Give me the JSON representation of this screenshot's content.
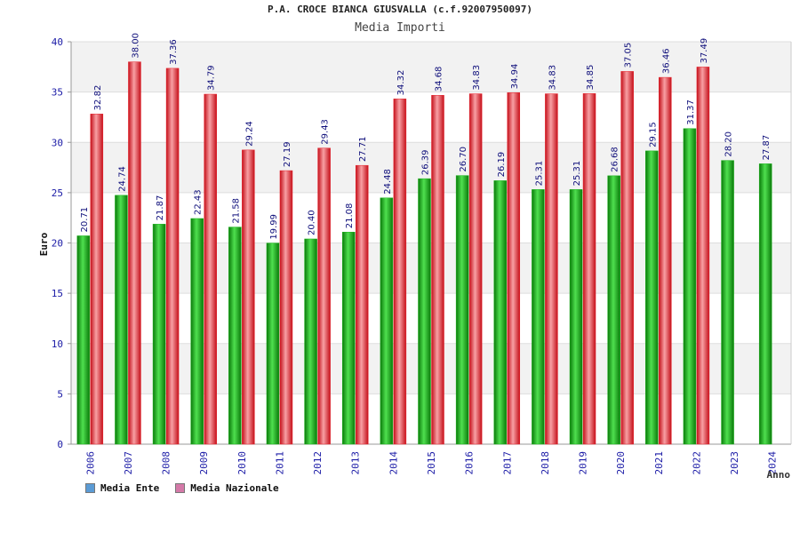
{
  "title": "P.A. CROCE BIANCA GIUSVALLA (c.f.92007950097)",
  "subtitle": "Media Importi",
  "chart_data": {
    "type": "bar",
    "ylabel": "Euro",
    "xlabel": "Anno",
    "ylim": [
      0,
      40
    ],
    "yticks": [
      0,
      5,
      10,
      15,
      20,
      25,
      30,
      35,
      40
    ],
    "grid": true,
    "legend_position": "bottom-left",
    "categories": [
      "2006",
      "2007",
      "2008",
      "2009",
      "2010",
      "2011",
      "2012",
      "2013",
      "2014",
      "2015",
      "2016",
      "2017",
      "2018",
      "2019",
      "2020",
      "2021",
      "2022",
      "2023",
      "2024"
    ],
    "series": [
      {
        "name": "Media Ente",
        "color": "#19b319",
        "legend_color": "#5b9bd5",
        "values": [
          20.71,
          24.74,
          21.87,
          22.43,
          21.58,
          19.99,
          20.4,
          21.08,
          24.48,
          26.39,
          26.7,
          26.19,
          25.31,
          25.31,
          26.68,
          29.15,
          31.37,
          28.2,
          27.87
        ],
        "labels": [
          "20.71",
          "24.74",
          "21.87",
          "22.43",
          "21.58",
          "19.99",
          "20.40",
          "21.08",
          "24.48",
          "26.39",
          "26.70",
          "26.19",
          "25.31",
          "25.31",
          "26.68",
          "29.15",
          "31.37",
          "28.20",
          "27.87"
        ]
      },
      {
        "name": "Media Nazionale",
        "color": "#e8202a",
        "legend_color": "#d479a8",
        "values": [
          32.82,
          38.0,
          37.36,
          34.79,
          29.24,
          27.19,
          29.43,
          27.71,
          34.32,
          34.68,
          34.83,
          34.94,
          34.83,
          34.85,
          37.05,
          36.46,
          37.49,
          null,
          null
        ],
        "labels": [
          "32.82",
          "38.00",
          "37.36",
          "34.79",
          "29.24",
          "27.19",
          "29.43",
          "27.71",
          "34.32",
          "34.68",
          "34.83",
          "34.94",
          "34.83",
          "34.85",
          "37.05",
          "36.46",
          "37.49",
          "",
          ""
        ]
      }
    ]
  }
}
